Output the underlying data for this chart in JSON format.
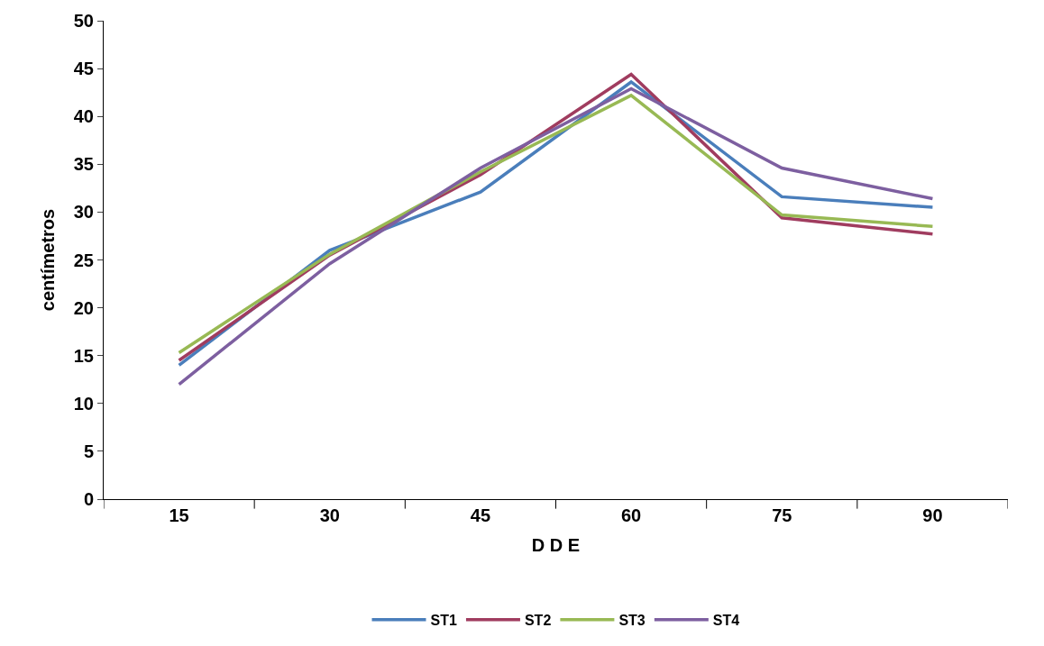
{
  "chart_data": {
    "type": "line",
    "xlabel": "D D E",
    "ylabel": "centímetros",
    "categories": [
      "15",
      "30",
      "45",
      "60",
      "75",
      "90"
    ],
    "ylim": [
      0,
      50
    ],
    "yticks": [
      0,
      5,
      10,
      15,
      20,
      25,
      30,
      35,
      40,
      45,
      50
    ],
    "legend": "bottom",
    "marker": "none",
    "line_style": "solid",
    "series": [
      {
        "name": "ST1",
        "color": "#4a7ebb",
        "values": [
          14.0,
          26.0,
          32.1,
          43.6,
          31.6,
          30.5
        ]
      },
      {
        "name": "ST2",
        "color": "#a03c5f",
        "values": [
          14.5,
          25.5,
          33.9,
          44.4,
          29.4,
          27.7
        ]
      },
      {
        "name": "ST3",
        "color": "#98b954",
        "values": [
          15.3,
          25.6,
          34.2,
          42.2,
          29.7,
          28.5
        ]
      },
      {
        "name": "ST4",
        "color": "#7d5fa0",
        "values": [
          12.0,
          24.6,
          34.6,
          42.9,
          34.6,
          31.4
        ]
      }
    ]
  }
}
